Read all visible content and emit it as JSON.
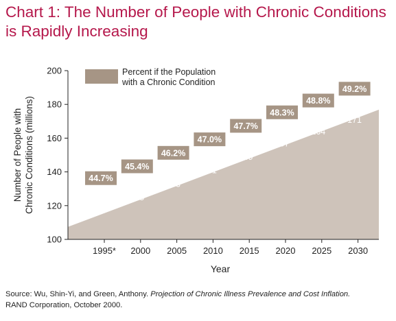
{
  "title_line1": "Chart 1: The Number of People with Chronic Conditions",
  "title_line2": "is Rapidly Increasing",
  "colors": {
    "title": "#b5174b",
    "area": "#cec3ba",
    "label_box": "#a69585",
    "legend_box": "#a69585",
    "axis": "#222222"
  },
  "chart_data": {
    "type": "area",
    "categories": [
      "1995*",
      "2000",
      "2005",
      "2010",
      "2015",
      "2020",
      "2025",
      "2030"
    ],
    "values": [
      118,
      125,
      133,
      141,
      149,
      157,
      164,
      171
    ],
    "percent_labels": [
      "44.7%",
      "45.4%",
      "46.2%",
      "47.0%",
      "47.7%",
      "48.3%",
      "48.8%",
      "49.2%"
    ],
    "series": [
      {
        "name": "Percent if the Population with a Chronic Condition",
        "values": [
          44.7,
          45.4,
          46.2,
          47.0,
          47.7,
          48.3,
          48.8,
          49.2
        ]
      }
    ],
    "legend_line1": "Percent if the Population",
    "legend_line2": "with a Chronic Condition",
    "ylabel_line1": "Number of People with",
    "ylabel_line2": "Chronic Conditions (millions)",
    "xlabel": "Year",
    "ylim": [
      100,
      200
    ],
    "yticks": [
      "100",
      "120",
      "140",
      "160",
      "180",
      "200"
    ],
    "legend_position": "top-left"
  },
  "source": {
    "prefix": "Source: Wu, Shin-Yi, and Green, Anthony. ",
    "italic": "Projection of Chronic Illness Prevalence and Cost Inflation.",
    "suffix": "RAND Corporation, October 2000."
  }
}
